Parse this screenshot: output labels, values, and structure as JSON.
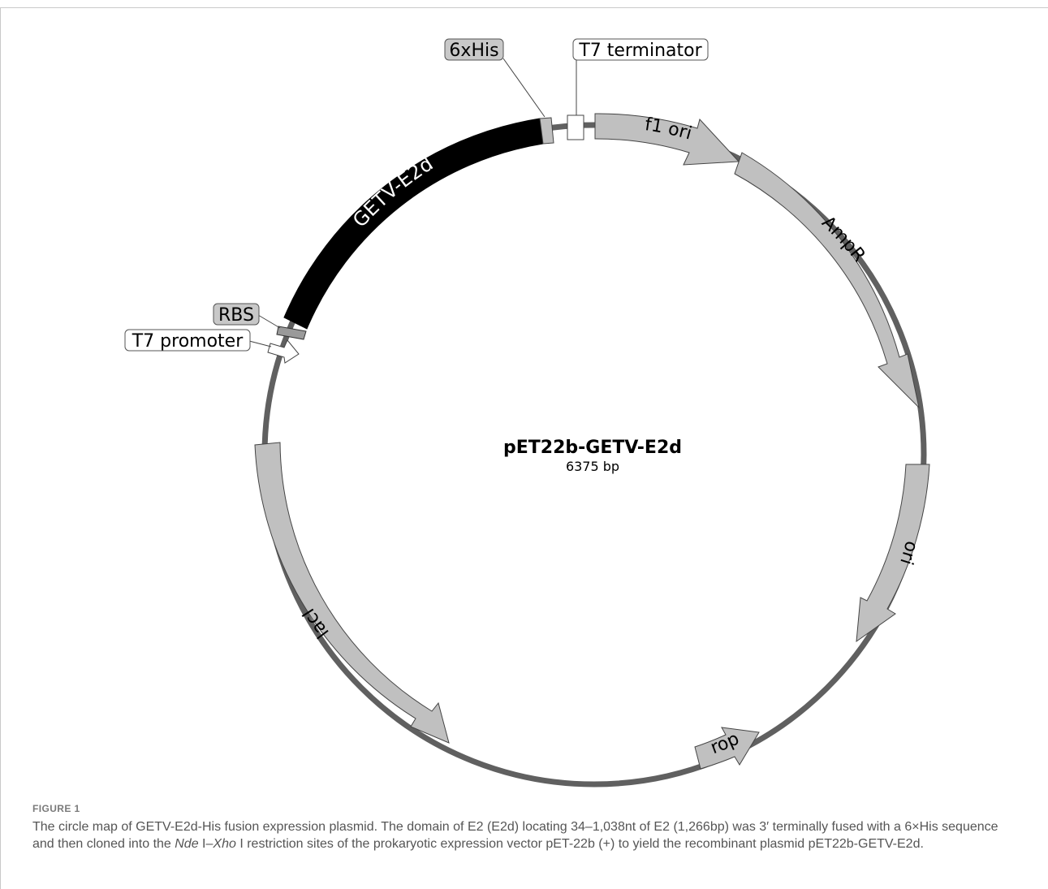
{
  "plasmid": {
    "name": "pET22b-GETV-E2d",
    "size": "6375 bp"
  },
  "features": [
    {
      "label": "GETV-E2d",
      "kind": "cds-black"
    },
    {
      "label": "6xHis",
      "kind": "box-gray"
    },
    {
      "label": "T7 terminator",
      "kind": "box-white"
    },
    {
      "label": "f1 ori",
      "kind": "arrow"
    },
    {
      "label": "AmpR",
      "kind": "arrow"
    },
    {
      "label": "ori",
      "kind": "arrow"
    },
    {
      "label": "rop",
      "kind": "arrow"
    },
    {
      "label": "lacI",
      "kind": "arrow"
    },
    {
      "label": "RBS",
      "kind": "box-gray"
    },
    {
      "label": "T7 promoter",
      "kind": "promoter-white"
    }
  ],
  "figure": {
    "label": "FIGURE 1",
    "caption_1": "The circle map of GETV-E2d-His fusion expression plasmid. The domain of E2 (E2d) locating 34–1,038nt of E2 (1,266bp) was 3′ terminally fused with a 6×His sequence and then cloned into the ",
    "enzyme_1": "Nde",
    "caption_2": " I–",
    "enzyme_2": "Xho",
    "caption_3": " I restriction sites of the prokaryotic expression vector pET-22b (+) to yield the recombinant plasmid pET22b-GETV-E2d."
  },
  "colors": {
    "backbone": "#606060",
    "arrow_fill": "#c0c0c0",
    "cds": "#000000",
    "label_gray": "#c8c8c8"
  }
}
